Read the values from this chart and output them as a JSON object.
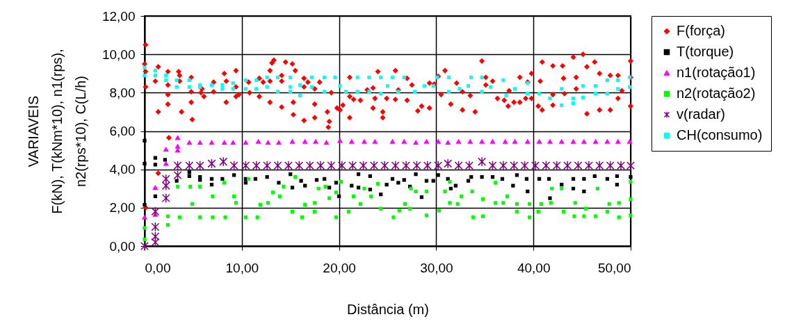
{
  "chart_data": {
    "type": "scatter",
    "xlabel": "Distância (m)",
    "ylabel": "VARIAVEIS\nF(kN), T(kNm*10), n1(rps),\nn2(rps*10), C(L/h)",
    "xlim": [
      0,
      50
    ],
    "ylim": [
      0,
      12
    ],
    "xticks": [
      {
        "value": 0,
        "label": "0,00"
      },
      {
        "value": 10,
        "label": "10,00"
      },
      {
        "value": 20,
        "label": "20,00"
      },
      {
        "value": 30,
        "label": "30,00"
      },
      {
        "value": 40,
        "label": "40,00"
      },
      {
        "value": 50,
        "label": "50,00"
      }
    ],
    "yticks": [
      {
        "value": 0,
        "label": "0,00"
      },
      {
        "value": 2,
        "label": "2,00"
      },
      {
        "value": 4,
        "label": "4,00"
      },
      {
        "value": 6,
        "label": "6,00"
      },
      {
        "value": 8,
        "label": "8,00"
      },
      {
        "value": 10,
        "label": "10,00"
      },
      {
        "value": 12,
        "label": "12,00"
      }
    ],
    "grid": true,
    "legend": "right",
    "series": [
      {
        "name": "F(força)",
        "color": "#ff0000",
        "marker": "diamond",
        "x": [
          0,
          0.1,
          0.1,
          0.1,
          0.1,
          1.1,
          1.4,
          1.4,
          1.4,
          2.4,
          2.4,
          2.4,
          2.4,
          2.5,
          3.5,
          3.6,
          3.6,
          3.8,
          4.8,
          4.8,
          4.8,
          4.9,
          5.8,
          5.9,
          6.1,
          7.1,
          7.1,
          8.2,
          8.4,
          8.4,
          9.4,
          9.4,
          9.4,
          9.7,
          10.7,
          10.8,
          11.8,
          11.8,
          12.2,
          12.9,
          12.9,
          12.9,
          13.1,
          13.3,
          14.1,
          14.1,
          14.1,
          14.5,
          15.2,
          15.5,
          15.3,
          15.3,
          16.4,
          16.4,
          16.4,
          16.8,
          17.5,
          17.5,
          17.5,
          18.0,
          18.8,
          19.0,
          18.9,
          19.2,
          19.8,
          20.1,
          20.4,
          21.1,
          21.1,
          21.1,
          21.5,
          22.2,
          22.9,
          23.5,
          23.5,
          23.7,
          24.0,
          24.5,
          24.5,
          24.9,
          25.8,
          25.8,
          26.1,
          27.0,
          27.0,
          27.5,
          28.1,
          28.5,
          29.3,
          29.3,
          29.8,
          30.2,
          30.9,
          30.5,
          31.5,
          32.1,
          32.7,
          32.7,
          33.5,
          34.0,
          34.7,
          35.1,
          35.1,
          35.8,
          36.3,
          37.0,
          37.5,
          37.4,
          38.0,
          38.6,
          38.6,
          39.2,
          39.4,
          39.8,
          39.8,
          40.5,
          40.9,
          40.9,
          40.7,
          42.0,
          42.0,
          42.0,
          43.0,
          43.1,
          43.2,
          44.1,
          44.4,
          44.4,
          45.1,
          45.5,
          45.5,
          46.3,
          46.8,
          46.8,
          47.9,
          47.9,
          48.7,
          48.7,
          49.1,
          50,
          50,
          50
        ],
        "values": [
          9.5,
          10.5,
          9.1,
          8.3,
          2.0,
          8.6,
          9.35,
          7.0,
          3.8,
          9.1,
          8.4,
          7.9,
          7.4,
          5.65,
          9.1,
          8.9,
          8.6,
          7.0,
          8.8,
          8.05,
          7.5,
          6.6,
          8.0,
          8.2,
          7.8,
          8.55,
          8.05,
          9.0,
          8.6,
          7.5,
          9.15,
          8.3,
          7.8,
          7.9,
          8.55,
          8.0,
          8.75,
          7.8,
          8.55,
          9.15,
          8.6,
          7.5,
          9.55,
          9.7,
          8.9,
          8.6,
          7.25,
          9.6,
          9.5,
          9.15,
          7.5,
          6.85,
          8.75,
          8.3,
          6.55,
          8.55,
          8.2,
          7.4,
          6.7,
          8.55,
          7.0,
          6.5,
          6.2,
          8.0,
          7.2,
          7.1,
          7.35,
          8.8,
          7.8,
          6.7,
          7.65,
          7.6,
          8.15,
          8.25,
          7.2,
          7.7,
          9.1,
          7.0,
          6.7,
          7.7,
          9.15,
          7.65,
          8.15,
          8.75,
          7.6,
          8.4,
          7.05,
          7.3,
          8.5,
          7.2,
          8.45,
          8.85,
          9.15,
          7.9,
          7.4,
          8.5,
          8.05,
          7.1,
          7.85,
          7.0,
          9.65,
          8.8,
          8.4,
          8.6,
          7.7,
          7.6,
          8.1,
          7.3,
          7.5,
          8.8,
          7.5,
          7.7,
          8.55,
          9.0,
          7.7,
          7.3,
          9.6,
          7.1,
          8.6,
          9.4,
          7.9,
          7.35,
          9.4,
          8.75,
          7.95,
          9.85,
          8.8,
          8.2,
          10.0,
          9.35,
          6.9,
          9.6,
          9.0,
          7.1,
          8.9,
          7.1,
          8.9,
          7.7,
          8.1,
          9.65,
          8.8,
          7.3
        ]
      },
      {
        "name": "T(torque)",
        "color": "#000000",
        "marker": "square",
        "x": [
          0,
          0,
          0,
          1.1,
          1.1,
          1.1,
          2.1,
          3.3,
          4.6,
          4.6,
          5.7,
          5.7,
          6.9,
          6.9,
          8.0,
          9.2,
          10.4,
          10.4,
          11.4,
          12.6,
          13.8,
          15.0,
          15.2,
          16.1,
          16.5,
          17.7,
          18.5,
          19.0,
          19.7,
          20.0,
          21.3,
          22.0,
          22.0,
          23.2,
          23.2,
          24.3,
          24.9,
          25.5,
          26.1,
          26.7,
          27.3,
          27.9,
          28.5,
          29.0,
          29.7,
          30.2,
          31.2,
          31.5,
          32.0,
          33.3,
          33.6,
          34.7,
          35.8,
          36.8,
          37.9,
          38.3,
          39.3,
          39.4,
          40.6,
          41.6,
          41.7,
          42.9,
          44.1,
          44.1,
          45.2,
          45.2,
          46.3,
          47.6,
          48.6,
          48.6,
          50.0
        ],
        "values": [
          5.5,
          4.3,
          2.15,
          4.6,
          4.25,
          2.6,
          4.5,
          3.4,
          3.85,
          3.65,
          3.6,
          3.45,
          3.5,
          3.2,
          3.5,
          3.7,
          3.5,
          3.3,
          3.5,
          3.6,
          3.3,
          3.75,
          3.05,
          3.4,
          3.15,
          3.45,
          3.5,
          3.05,
          3.3,
          2.6,
          3.15,
          3.75,
          3.05,
          3.65,
          2.95,
          2.7,
          3.2,
          3.5,
          3.3,
          3.45,
          3.1,
          3.75,
          2.55,
          3.4,
          3.4,
          3.7,
          3.5,
          3.0,
          3.15,
          3.4,
          3.6,
          3.6,
          3.6,
          3.5,
          3.15,
          3.7,
          3.5,
          2.85,
          3.5,
          3.5,
          2.5,
          3.2,
          3.5,
          3.0,
          3.5,
          2.85,
          3.65,
          3.5,
          3.65,
          3.2,
          3.6
        ]
      },
      {
        "name": "n1(rotação1)",
        "color": "#ff00ff",
        "marker": "triangle",
        "x": [
          0,
          1.1,
          1.1,
          2.2,
          2.2,
          3.4,
          3.4,
          3.4,
          4.6,
          5.7,
          6.9,
          8.2,
          9.1,
          10.4,
          11.7,
          12.7,
          13.8,
          15.2,
          16.5,
          17.6,
          18.7,
          20.1,
          21.3,
          22.6,
          23.7,
          25.5,
          26.7,
          27.9,
          29.0,
          30.2,
          31.2,
          32.3,
          33.5,
          34.7,
          35.8,
          37.1,
          38.1,
          39.4,
          40.6,
          41.7,
          42.9,
          44.1,
          45.2,
          46.4,
          47.6,
          48.7,
          49.9
        ],
        "values": [
          1.5,
          3.05,
          1.65,
          5.05,
          4.3,
          5.65,
          5.2,
          5.0,
          5.4,
          5.4,
          5.4,
          5.4,
          5.4,
          5.4,
          5.45,
          5.4,
          5.4,
          5.45,
          5.45,
          5.45,
          5.4,
          5.5,
          5.45,
          5.45,
          5.45,
          5.45,
          5.45,
          5.4,
          5.45,
          5.45,
          5.4,
          5.45,
          5.45,
          5.45,
          5.45,
          5.45,
          5.45,
          5.45,
          5.45,
          5.45,
          5.45,
          5.45,
          5.45,
          5.45,
          5.45,
          5.45,
          5.45
        ]
      },
      {
        "name": "n2(rotação2)",
        "color": "#00ff00",
        "marker": "square",
        "x": [
          0,
          0,
          2.4,
          2.4,
          3.4,
          3.6,
          4.7,
          4.9,
          5.7,
          5.7,
          7.0,
          7.0,
          8.2,
          8.3,
          9.2,
          9.4,
          10.4,
          10.7,
          11.9,
          11.6,
          12.7,
          13.2,
          13.9,
          14.3,
          15.2,
          15.5,
          16.2,
          16.5,
          17.5,
          17.5,
          17.9,
          18.6,
          19.0,
          19.7,
          19.7,
          20.2,
          21.0,
          21.5,
          22.2,
          22.6,
          23.3,
          24.0,
          24.3,
          25.6,
          26.2,
          26.8,
          27.3,
          27.4,
          27.9,
          29.0,
          29.0,
          30.3,
          30.9,
          31.4,
          31.4,
          32.2,
          32.6,
          33.7,
          33.8,
          34.8,
          34.8,
          36.1,
          36.1,
          36.9,
          37.3,
          38.3,
          38.3,
          39.6,
          39.6,
          40.5,
          40.8,
          41.9,
          41.8,
          43.1,
          42.9,
          44.2,
          44.3,
          45.2,
          45.4,
          46.4,
          46.6,
          47.6,
          47.8,
          48.8,
          48.8,
          50.0,
          50.0,
          50.0
        ],
        "values": [
          0.95,
          0.35,
          1.55,
          1.1,
          3.1,
          1.5,
          3.1,
          2.2,
          3.1,
          1.5,
          2.6,
          1.5,
          3.3,
          1.5,
          2.6,
          2.25,
          1.5,
          3.5,
          2.15,
          1.5,
          2.25,
          2.8,
          2.6,
          3.1,
          1.8,
          3.6,
          1.5,
          2.15,
          2.25,
          1.8,
          3.0,
          3.1,
          2.5,
          1.5,
          2.8,
          3.35,
          1.8,
          2.6,
          2.2,
          3.0,
          2.6,
          3.25,
          1.95,
          1.5,
          1.85,
          2.2,
          1.95,
          3.0,
          2.85,
          2.85,
          1.6,
          1.85,
          2.85,
          3.35,
          2.25,
          2.2,
          2.6,
          2.85,
          1.5,
          2.45,
          1.55,
          3.3,
          2.25,
          2.25,
          2.6,
          2.2,
          1.8,
          2.2,
          1.5,
          1.8,
          2.2,
          3.0,
          2.25,
          1.8,
          3.0,
          1.55,
          2.25,
          1.55,
          1.95,
          1.55,
          3.0,
          1.8,
          2.2,
          1.5,
          2.25,
          2.45,
          1.6,
          3.35
        ]
      },
      {
        "name": "v(radar)",
        "color": "#800080",
        "marker": "cross",
        "x": [
          0,
          1.1,
          1.1,
          1.1,
          1.1,
          2.2,
          2.2,
          2.2,
          3.4,
          3.4,
          4.6,
          5.7,
          6.9,
          8.1,
          9.2,
          10.4,
          11.5,
          12.6,
          13.7,
          14.8,
          15.9,
          17.0,
          18.1,
          19.2,
          20.3,
          21.4,
          22.5,
          23.6,
          24.7,
          25.8,
          26.9,
          28.0,
          29.1,
          30.2,
          31.2,
          32.3,
          33.4,
          34.7,
          35.8,
          36.9,
          38.0,
          39.1,
          40.2,
          41.3,
          42.4,
          43.5,
          44.6,
          45.7,
          46.8,
          47.9,
          49.0,
          50.0
        ],
        "values": [
          0,
          0.2,
          0.5,
          1.0,
          1.8,
          2.5,
          3.15,
          3.5,
          4.2,
          3.7,
          4.2,
          4.2,
          4.3,
          4.4,
          4.2,
          4.2,
          4.2,
          4.2,
          4.2,
          4.2,
          4.2,
          4.2,
          4.2,
          4.2,
          4.2,
          4.2,
          4.2,
          4.2,
          4.2,
          4.2,
          4.2,
          4.2,
          4.2,
          4.2,
          4.3,
          4.2,
          4.2,
          4.4,
          4.2,
          4.2,
          4.2,
          4.2,
          4.2,
          4.2,
          4.2,
          4.2,
          4.2,
          4.2,
          4.2,
          4.2,
          4.2,
          4.2
        ]
      },
      {
        "name": "CH(consumo)",
        "color": "#00ffff",
        "marker": "square",
        "x": [
          0,
          0,
          1.1,
          1.1,
          2.2,
          2.2,
          3.3,
          3.3,
          4.6,
          4.6,
          5.7,
          5.7,
          6.9,
          8.0,
          8.0,
          9.1,
          9.1,
          10.4,
          10.4,
          11.5,
          11.5,
          12.6,
          12.6,
          13.7,
          13.7,
          15.0,
          15.0,
          15.0,
          16.0,
          16.0,
          17.2,
          17.2,
          18.5,
          18.5,
          19.6,
          20.1,
          20.7,
          21.9,
          21.9,
          23.1,
          23.1,
          24.3,
          24.3,
          25.0,
          25.5,
          26.1,
          26.7,
          27.8,
          28.8,
          29.7,
          30.1,
          31.3,
          31.3,
          32.4,
          33.3,
          33.6,
          34.7,
          34.7,
          35.6,
          36.9,
          37.2,
          38.1,
          39.4,
          39.4,
          40.6,
          41.7,
          42.9,
          42.9,
          44.1,
          44.1,
          45.1,
          45.1,
          46.4,
          46.4,
          47.6,
          47.6,
          48.7,
          48.7,
          49.9,
          49.9
        ],
        "values": [
          9.3,
          8.9,
          9.15,
          8.9,
          8.9,
          8.65,
          8.65,
          8.3,
          8.65,
          8.3,
          8.4,
          8.3,
          8.4,
          8.4,
          8.2,
          8.5,
          8.2,
          8.65,
          8.2,
          8.65,
          8.2,
          8.8,
          8.3,
          8.8,
          8.05,
          8.8,
          8.3,
          8.05,
          8.4,
          7.85,
          8.8,
          8.3,
          8.8,
          8.05,
          8.8,
          8.35,
          8.05,
          8.8,
          8.05,
          8.8,
          8.05,
          8.8,
          7.95,
          8.35,
          8.8,
          8.05,
          8.8,
          8.05,
          8.35,
          8.35,
          8.8,
          8.8,
          8.05,
          8.2,
          8.35,
          8.8,
          8.8,
          8.05,
          8.3,
          8.65,
          7.85,
          8.2,
          8.5,
          7.95,
          7.95,
          7.7,
          8.2,
          7.35,
          7.7,
          7.45,
          8.35,
          7.75,
          8.35,
          7.95,
          8.65,
          7.95,
          8.65,
          8.2,
          8.8,
          8.3
        ]
      }
    ]
  }
}
